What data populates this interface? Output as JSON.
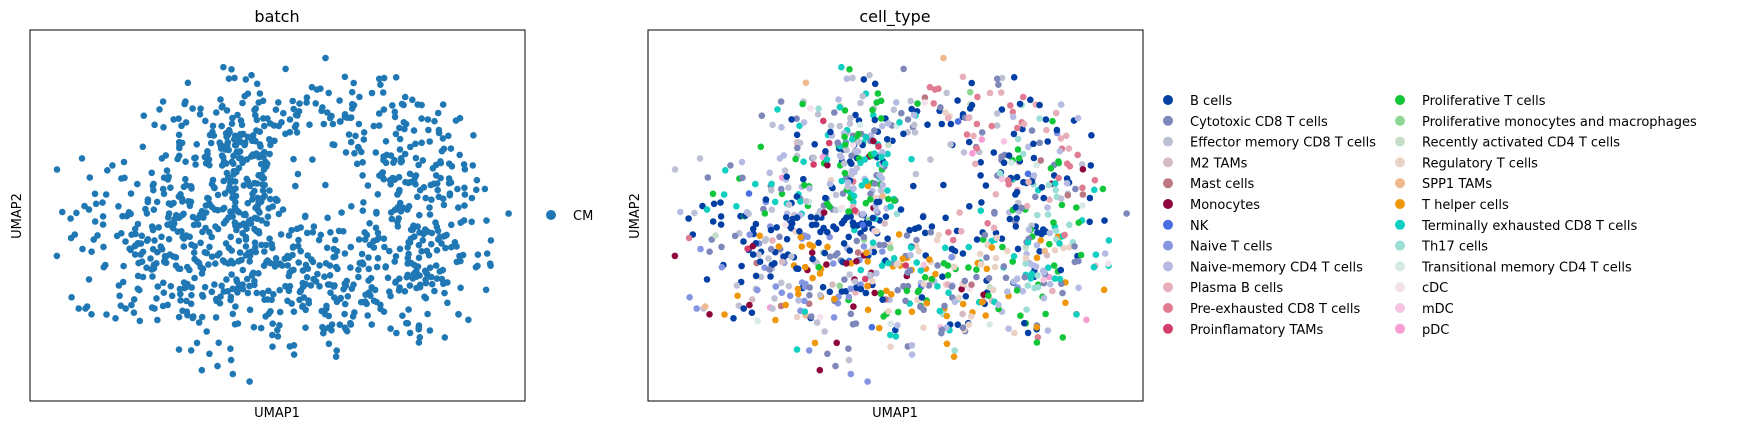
{
  "chart_data": [
    {
      "type": "scatter",
      "title": "batch",
      "xlabel": "UMAP1",
      "ylabel": "UMAP2",
      "xlim": [
        0,
        1
      ],
      "ylim": [
        0,
        1
      ],
      "grid": false,
      "legend_placement": "right",
      "legend": [
        {
          "name": "CM",
          "color": "#1f77b4"
        }
      ],
      "density_regions": [
        {
          "cx": 0.44,
          "cy": 0.64,
          "rx": 0.14,
          "ry": 0.2,
          "weight": 0.22
        },
        {
          "cx": 0.72,
          "cy": 0.7,
          "rx": 0.18,
          "ry": 0.2,
          "weight": 0.16
        },
        {
          "cx": 0.54,
          "cy": 0.3,
          "rx": 0.28,
          "ry": 0.16,
          "weight": 0.22
        },
        {
          "cx": 0.28,
          "cy": 0.44,
          "rx": 0.18,
          "ry": 0.18,
          "weight": 0.14
        },
        {
          "cx": 0.8,
          "cy": 0.42,
          "rx": 0.12,
          "ry": 0.22,
          "weight": 0.12
        },
        {
          "cx": 0.5,
          "cy": 0.5,
          "rx": 0.46,
          "ry": 0.42,
          "weight": 0.14
        }
      ],
      "n_points": 1100
    },
    {
      "type": "scatter",
      "title": "cell_type",
      "xlabel": "UMAP1",
      "ylabel": "UMAP2",
      "xlim": [
        0,
        1
      ],
      "ylim": [
        0,
        1
      ],
      "grid": false,
      "legend_placement": "right",
      "legend": [
        {
          "name": "B cells",
          "color": "#023fa5"
        },
        {
          "name": "Cytotoxic CD8 T cells",
          "color": "#7d87b9"
        },
        {
          "name": "Effector memory CD8 T cells",
          "color": "#bec1d4"
        },
        {
          "name": "M2 TAMs",
          "color": "#d6bcc0"
        },
        {
          "name": "Mast cells",
          "color": "#bb7784"
        },
        {
          "name": "Monocytes",
          "color": "#8e063b"
        },
        {
          "name": "NK",
          "color": "#4a6fe3"
        },
        {
          "name": "Naive T cells",
          "color": "#8595e1"
        },
        {
          "name": "Naive-memory CD4 T cells",
          "color": "#b5bbe3"
        },
        {
          "name": "Plasma B cells",
          "color": "#e6afb9"
        },
        {
          "name": "Pre-exhausted CD8 T cells",
          "color": "#e07b91"
        },
        {
          "name": "Proinflamatory TAMs",
          "color": "#d33f6a"
        },
        {
          "name": "Proliferative T cells",
          "color": "#11c638"
        },
        {
          "name": "Proliferative monocytes and macrophages",
          "color": "#8dd593"
        },
        {
          "name": "Recently activated CD4 T cells",
          "color": "#c6dec7"
        },
        {
          "name": "Regulatory T cells",
          "color": "#ead3c6"
        },
        {
          "name": "SPP1 TAMs",
          "color": "#f0b98d"
        },
        {
          "name": "T helper cells",
          "color": "#ef9708"
        },
        {
          "name": "Terminally exhausted CD8 T cells",
          "color": "#0fcfc0"
        },
        {
          "name": "Th17 cells",
          "color": "#9cded6"
        },
        {
          "name": "Transitional memory CD4 T cells",
          "color": "#d5eae7"
        },
        {
          "name": "cDC",
          "color": "#f3e1eb"
        },
        {
          "name": "mDC",
          "color": "#f6c4e1"
        },
        {
          "name": "pDC",
          "color": "#f79cd4"
        }
      ],
      "n_points": 1100
    }
  ]
}
